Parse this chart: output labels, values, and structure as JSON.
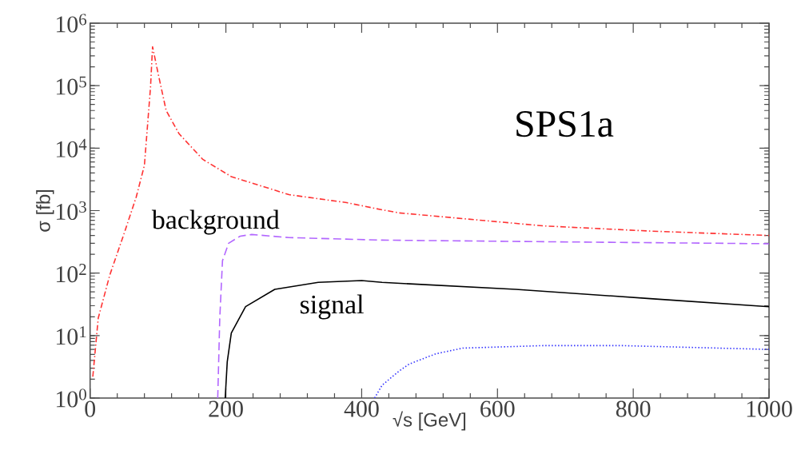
{
  "chart_data": {
    "type": "line",
    "xlabel": "√s  [GeV]",
    "ylabel": "σ [fb]",
    "log": "y",
    "xlim": [
      0,
      1000
    ],
    "xticks": [
      0,
      200,
      400,
      600,
      800,
      1000
    ],
    "ylim": [
      1,
      1000000
    ],
    "yticks": [
      {
        "value": 1,
        "label": "10$^{0}$"
      },
      {
        "value": 10,
        "label": "10$^{1}$"
      },
      {
        "value": 100,
        "label": "10$^{2}$"
      },
      {
        "value": 1000,
        "label": "10$^{3}$"
      },
      {
        "value": 10000,
        "label": "10$^{4}$"
      },
      {
        "value": 100000,
        "label": "10$^{5}$"
      },
      {
        "value": 1000000,
        "label": "10$^{6}$"
      }
    ],
    "grid": false,
    "series": [
      {
        "color": "#ff3333",
        "line_style": "dashdot",
        "x": [
          4,
          12,
          29,
          51,
          68,
          80,
          89,
          92,
          100,
          112,
          131,
          166,
          208,
          251,
          293,
          378,
          430,
          455,
          667,
          825,
          1000
        ],
        "values": [
          2.2,
          19,
          93,
          460,
          1660,
          5300,
          95000,
          420000,
          160000,
          40000,
          17000,
          6600,
          3500,
          2500,
          1800,
          1340,
          1030,
          920,
          570,
          470,
          400
        ]
      },
      {
        "color": "#b266ff",
        "line_style": "dashed",
        "x": [
          188,
          191,
          195,
          204,
          221,
          238,
          293,
          430,
          707,
          1000
        ],
        "values": [
          1,
          19,
          158,
          300,
          390,
          415,
          370,
          337,
          315,
          295
        ]
      },
      {
        "color": "#000000",
        "line_style": "solid",
        "x": [
          199,
          202,
          208,
          229,
          272,
          336,
          400,
          430,
          627,
          825,
          1000
        ],
        "values": [
          1,
          3.8,
          11,
          29,
          55,
          71,
          76,
          71,
          55,
          39,
          29
        ]
      },
      {
        "color": "#3333ff",
        "line_style": "dotted",
        "x": [
          419,
          430,
          455,
          470,
          509,
          549,
          667,
          785,
          1000
        ],
        "values": [
          1,
          1.6,
          2.7,
          3.5,
          5.1,
          6.3,
          6.9,
          6.9,
          6.0
        ]
      }
    ],
    "annotations": [
      "background",
      "signal",
      "SPS1a"
    ]
  }
}
